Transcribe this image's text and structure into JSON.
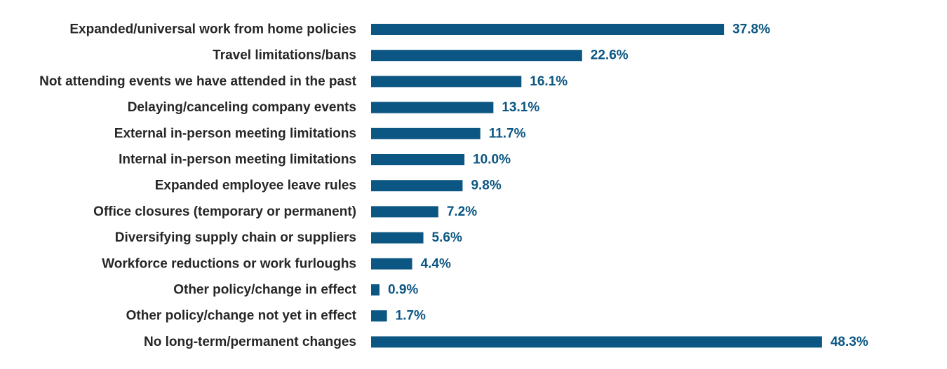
{
  "chart_data": {
    "type": "bar",
    "orientation": "horizontal",
    "title": "",
    "xlabel": "",
    "ylabel": "",
    "grid": false,
    "legend": "none",
    "bar_color": "#0b5682",
    "label_color": "#262626",
    "value_color": "#0b5682",
    "value_suffix": "%",
    "xlim": [
      0,
      50
    ],
    "categories": [
      "Expanded/universal work from home policies",
      "Travel limitations/bans",
      "Not attending events we have attended in the past",
      "Delaying/canceling company events",
      "External in-person meeting limitations",
      "Internal in-person meeting limitations",
      "Expanded employee leave rules",
      "Office closures (temporary or permanent)",
      "Diversifying supply chain or suppliers",
      "Workforce reductions or work furloughs",
      "Other policy/change in effect",
      "Other policy/change not yet in effect",
      "No long-term/permanent changes"
    ],
    "values": [
      37.8,
      22.6,
      16.1,
      13.1,
      11.7,
      10.0,
      9.8,
      7.2,
      5.6,
      4.4,
      0.9,
      1.7,
      48.3
    ],
    "value_labels": [
      "37.8%",
      "22.6%",
      "16.1%",
      "13.1%",
      "11.7%",
      "10.0%",
      "9.8%",
      "7.2%",
      "5.6%",
      "4.4%",
      "0.9%",
      "1.7%",
      "48.3%"
    ]
  }
}
